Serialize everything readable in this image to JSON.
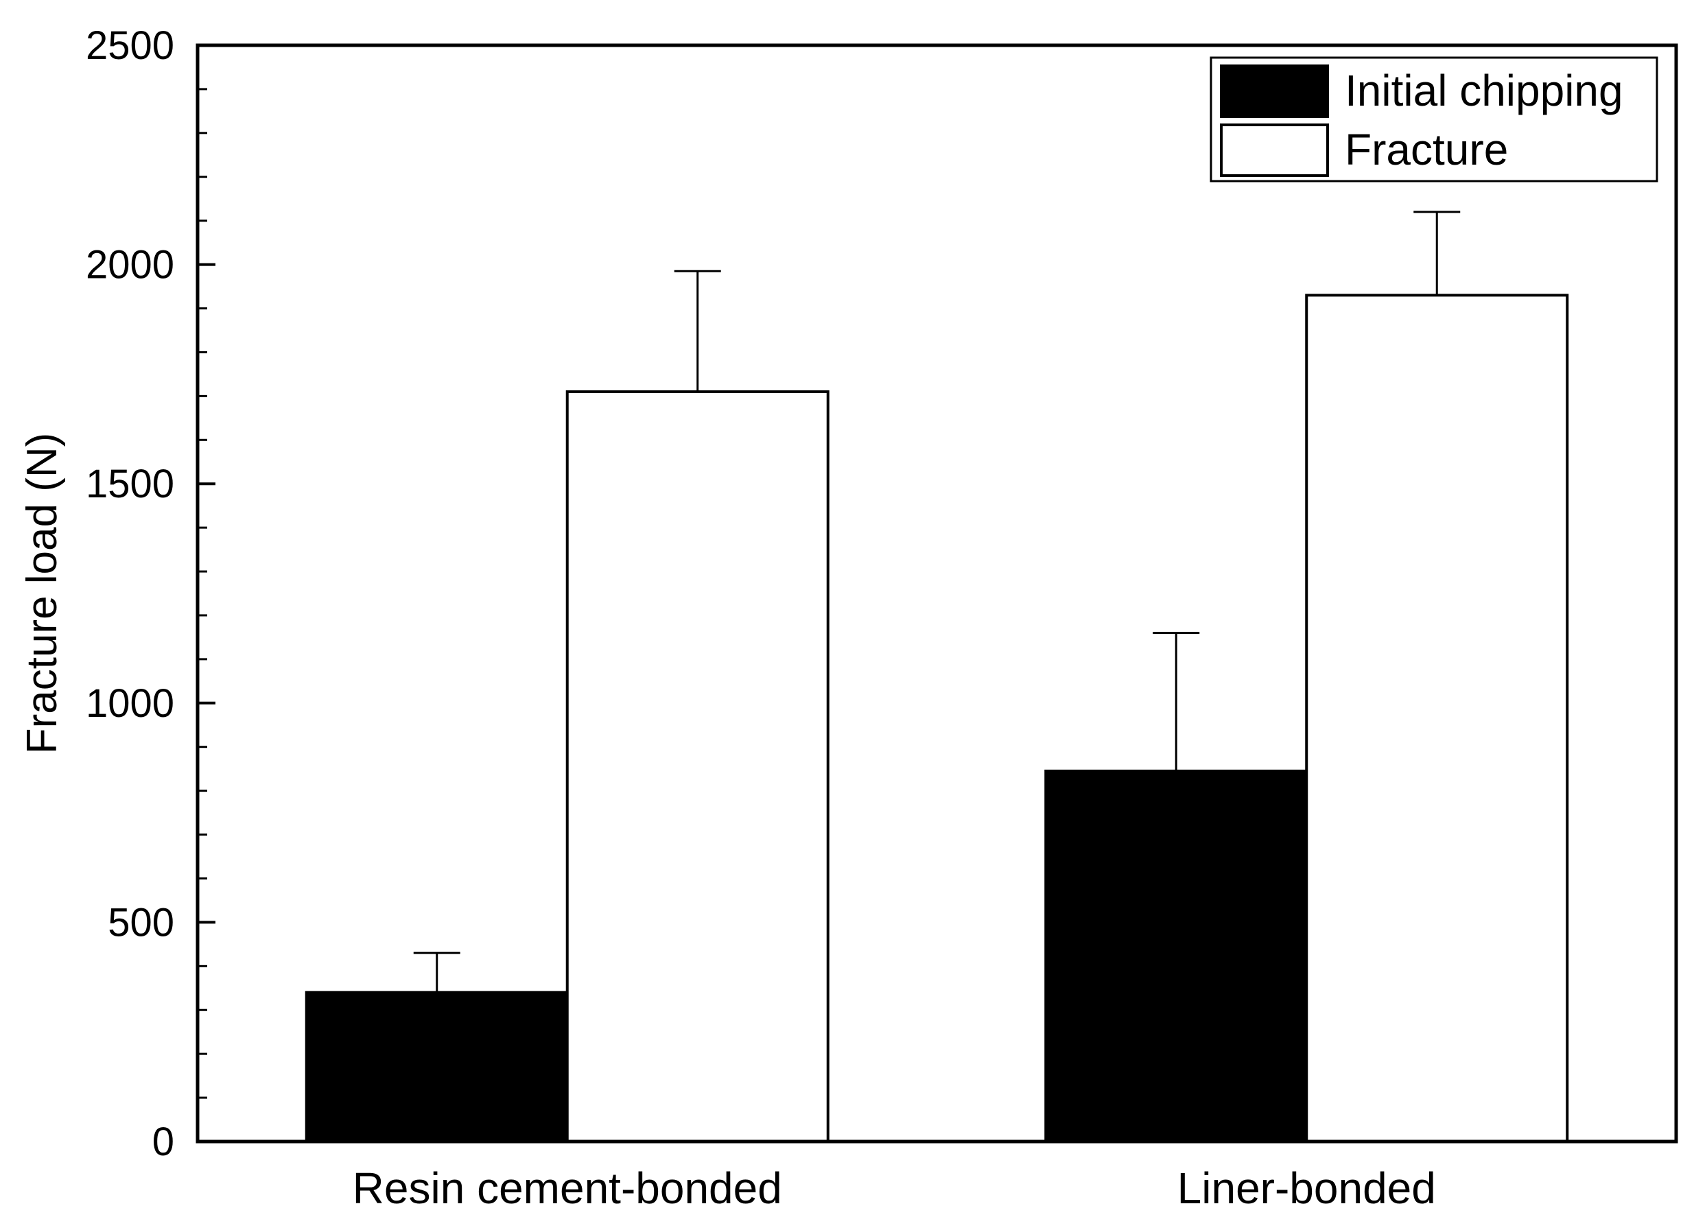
{
  "chart_data": {
    "type": "bar",
    "title": "",
    "xlabel": "",
    "ylabel": "Fracture load (N)",
    "categories": [
      "Resin cement-bonded",
      "Liner-bonded"
    ],
    "series": [
      {
        "name": "Initial chipping",
        "values": [
          340,
          845
        ],
        "errors": [
          90,
          315
        ],
        "fill": "#000000"
      },
      {
        "name": "Fracture",
        "values": [
          1710,
          1930
        ],
        "errors": [
          275,
          190
        ],
        "fill": "#ffffff"
      }
    ],
    "ylim": [
      0,
      2500
    ],
    "yticks": [
      0,
      500,
      1000,
      1500,
      2000,
      2500
    ],
    "yminor_step": 100,
    "grid": false,
    "legend_position": "top-right"
  }
}
